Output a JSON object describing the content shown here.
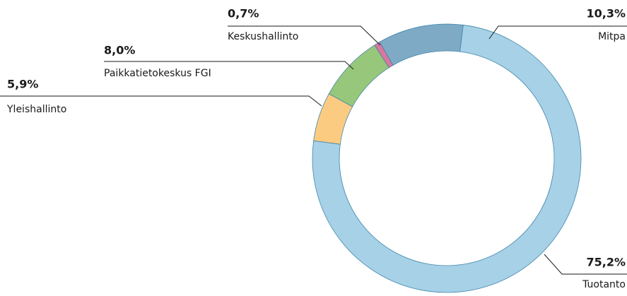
{
  "chart_data": {
    "type": "donut",
    "categories": [
      "Mitpa",
      "Tuotanto",
      "Yleishallinto",
      "Paikkatietokeskus FGI",
      "Keskushallinto"
    ],
    "values": [
      10.3,
      75.2,
      5.9,
      8.0,
      0.7
    ],
    "value_labels": [
      "10,3%",
      "75,2%",
      "5,9%",
      "8,0%",
      "0,7%"
    ],
    "colors": [
      "#7eaac6",
      "#a7d1e7",
      "#fccb82",
      "#97c77b",
      "#d9779f"
    ]
  }
}
